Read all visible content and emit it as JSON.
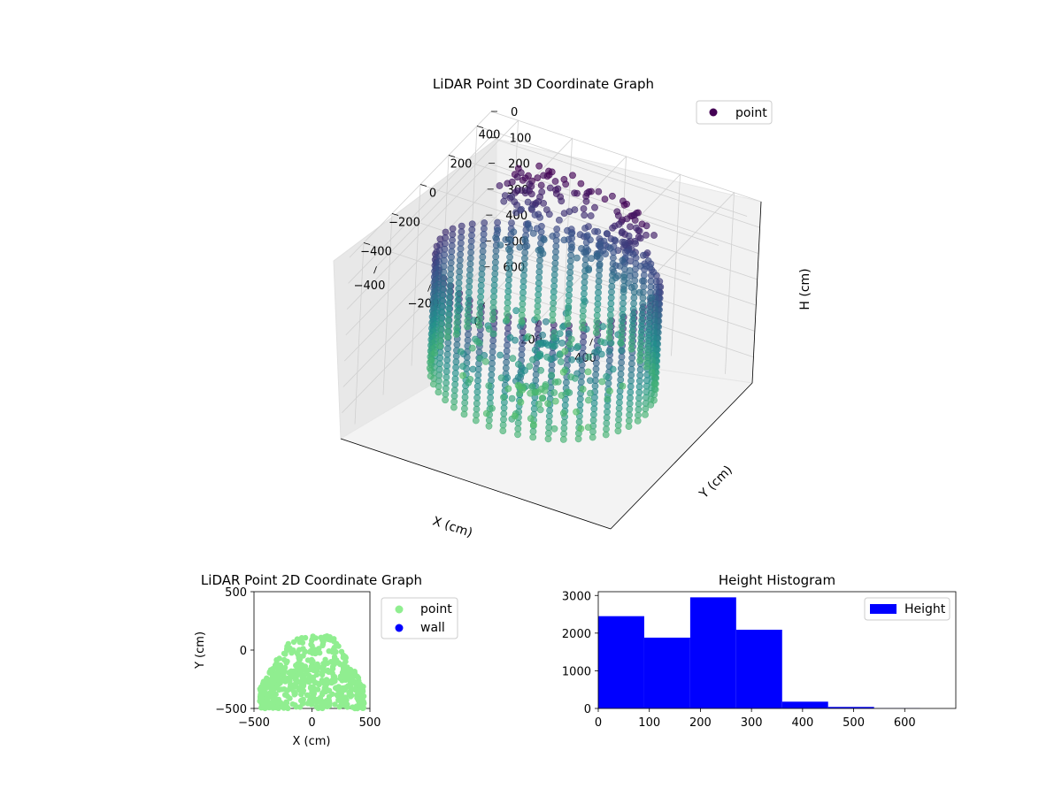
{
  "chart_data": [
    {
      "type": "scatter3d",
      "title": "LiDAR Point 3D Coordinate Graph",
      "xlabel": "X (cm)",
      "ylabel": "Y (cm)",
      "zlabel": "H (cm)",
      "xticks": [
        -400,
        -200,
        0,
        200,
        400
      ],
      "yticks": [
        -400,
        -200,
        0,
        200,
        400
      ],
      "zticks": [
        0,
        100,
        200,
        300,
        400,
        500,
        600
      ],
      "xlim": [
        -500,
        500
      ],
      "ylim": [
        -500,
        500
      ],
      "zlim": [
        0,
        700
      ],
      "z_inverted": true,
      "grid": true,
      "legend": {
        "position": "top-right",
        "entries": [
          {
            "label": "point",
            "color": "#440154"
          }
        ]
      },
      "colormap": "viridis (by height)",
      "series": [
        {
          "name": "point"
        }
      ]
    },
    {
      "type": "scatter",
      "title": "LiDAR Point 2D Coordinate Graph",
      "xlabel": "X (cm)",
      "ylabel": "Y (cm)",
      "xticks": [
        -500,
        0,
        500
      ],
      "yticks": [
        -500,
        0,
        500
      ],
      "xlim": [
        -500,
        500
      ],
      "ylim": [
        -500,
        500
      ],
      "legend": {
        "position": "right",
        "entries": [
          {
            "label": "point",
            "color": "#90ee90"
          },
          {
            "label": "wall",
            "color": "#0000ff"
          }
        ]
      },
      "series": [
        {
          "name": "point",
          "color": "#90ee90"
        },
        {
          "name": "wall",
          "color": "#0000ff"
        }
      ]
    },
    {
      "type": "bar",
      "title": "Height Histogram",
      "bin_edges": [
        0,
        90,
        180,
        270,
        360,
        450,
        540,
        630
      ],
      "values": [
        2450,
        1880,
        2950,
        2090,
        180,
        40,
        5
      ],
      "xticks": [
        0,
        100,
        200,
        300,
        400,
        500,
        600
      ],
      "yticks": [
        0,
        1000,
        2000,
        3000
      ],
      "xlim": [
        0,
        700
      ],
      "ylim": [
        0,
        3100
      ],
      "color": "#0000ff",
      "legend": {
        "position": "top-right",
        "entries": [
          {
            "label": "Height",
            "color": "#0000ff"
          }
        ]
      },
      "series": [
        {
          "name": "Height"
        }
      ]
    }
  ]
}
